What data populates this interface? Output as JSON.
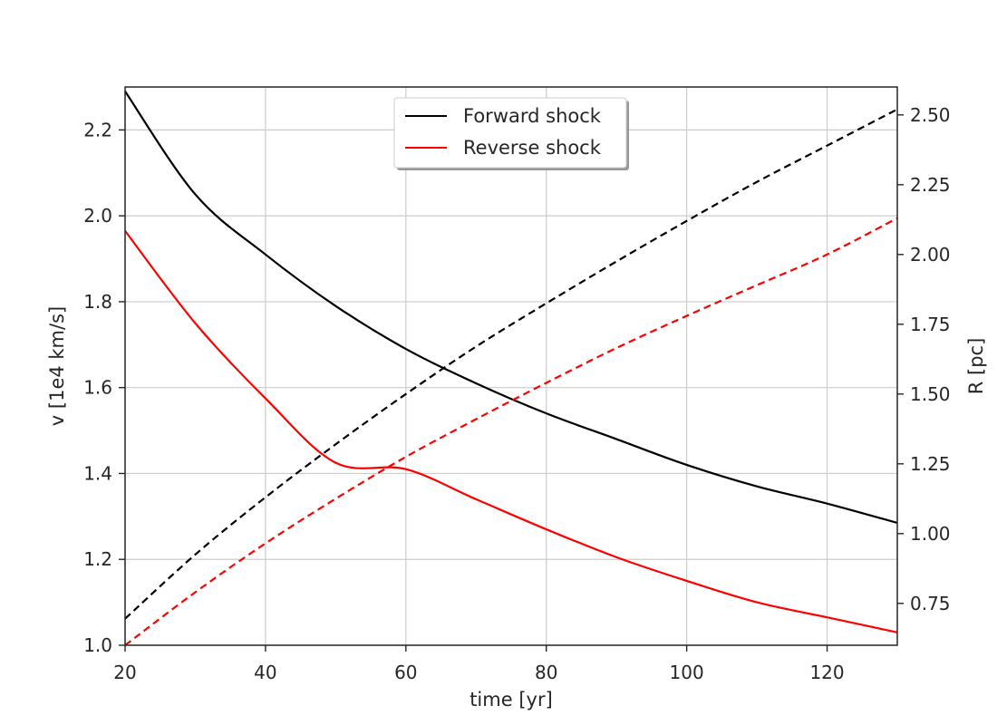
{
  "chart_data": {
    "type": "line",
    "xlabel": "time [yr]",
    "ylabel_left": "v [1e4 km/s]",
    "ylabel_right": "R [pc]",
    "xlim": [
      20,
      130
    ],
    "ylim_left": [
      1.0,
      2.3
    ],
    "ylim_right": [
      0.6,
      2.6
    ],
    "xticks": [
      20,
      40,
      60,
      80,
      100,
      120
    ],
    "xtick_labels": [
      "20",
      "40",
      "60",
      "80",
      "100",
      "120"
    ],
    "yticks_left": [
      1.0,
      1.2,
      1.4,
      1.6,
      1.8,
      2.0,
      2.2
    ],
    "ytick_labels_left": [
      "1.0",
      "1.2",
      "1.4",
      "1.6",
      "1.8",
      "2.0",
      "2.2"
    ],
    "yticks_right": [
      0.75,
      1.0,
      1.25,
      1.5,
      1.75,
      2.0,
      2.25,
      2.5
    ],
    "ytick_labels_right": [
      "0.75",
      "1.00",
      "1.25",
      "1.50",
      "1.75",
      "2.00",
      "2.25",
      "2.50"
    ],
    "grid": true,
    "legend": {
      "placement": "upper-center",
      "entries": [
        {
          "label": "Forward shock",
          "color": "#000000"
        },
        {
          "label": "Reverse shock",
          "color": "#ff0000"
        }
      ]
    },
    "series": [
      {
        "name": "Forward shock",
        "axis": "left",
        "style": "solid",
        "color": "#000000",
        "x": [
          20,
          30,
          40,
          50,
          60,
          70,
          80,
          90,
          100,
          110,
          120,
          130
        ],
        "values": [
          2.29,
          2.05,
          1.91,
          1.79,
          1.69,
          1.61,
          1.54,
          1.48,
          1.42,
          1.37,
          1.33,
          1.285
        ]
      },
      {
        "name": "Reverse shock",
        "axis": "left",
        "style": "solid",
        "color": "#ff0000",
        "x": [
          20,
          30,
          40,
          50,
          60,
          70,
          80,
          90,
          100,
          110,
          120,
          130
        ],
        "values": [
          1.965,
          1.75,
          1.575,
          1.425,
          1.41,
          1.34,
          1.27,
          1.205,
          1.15,
          1.1,
          1.065,
          1.03
        ]
      },
      {
        "axis": "right",
        "style": "dashed",
        "color": "#000000",
        "x": [
          20,
          30,
          40,
          50,
          60,
          70,
          80,
          90,
          100,
          110,
          120,
          130
        ],
        "values": [
          0.695,
          0.925,
          1.13,
          1.32,
          1.5,
          1.67,
          1.825,
          1.975,
          2.12,
          2.26,
          2.39,
          2.52
        ]
      },
      {
        "axis": "right",
        "style": "dashed",
        "color": "#ff0000",
        "x": [
          20,
          30,
          40,
          50,
          60,
          70,
          80,
          90,
          100,
          110,
          120,
          130
        ],
        "values": [
          0.6,
          0.79,
          0.965,
          1.125,
          1.275,
          1.41,
          1.54,
          1.665,
          1.78,
          1.89,
          2.0,
          2.13
        ]
      }
    ]
  }
}
